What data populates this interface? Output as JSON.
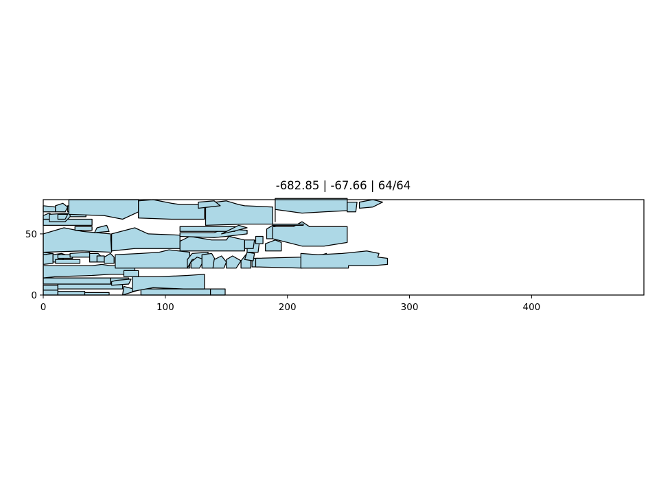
{
  "chart_data": {
    "type": "polygon-packing",
    "title": "-682.85 | -67.66 | 64/64",
    "xlabel": "",
    "ylabel": "",
    "xlim": [
      0,
      492
    ],
    "ylim": [
      0,
      78
    ],
    "xticks": [
      "0",
      "100",
      "200",
      "300",
      "400"
    ],
    "yticks": [
      "0",
      "50"
    ],
    "grid": false,
    "fill_color": "#add8e6",
    "edge_color": "#000000",
    "pieces": [
      [
        [
          0,
          0
        ],
        [
          12,
          0
        ],
        [
          12,
          4
        ],
        [
          0,
          4
        ]
      ],
      [
        [
          12,
          0
        ],
        [
          34,
          0
        ],
        [
          34,
          3
        ],
        [
          12,
          3
        ]
      ],
      [
        [
          34,
          0
        ],
        [
          54,
          0
        ],
        [
          54,
          2
        ],
        [
          34,
          2
        ]
      ],
      [
        [
          65,
          0
        ],
        [
          78,
          4
        ],
        [
          66,
          7
        ]
      ],
      [
        [
          80,
          0
        ],
        [
          137,
          0
        ],
        [
          137,
          5
        ],
        [
          80,
          5
        ]
      ],
      [
        [
          137,
          0
        ],
        [
          149,
          0
        ],
        [
          149,
          5
        ],
        [
          137,
          5
        ]
      ],
      [
        [
          0,
          4
        ],
        [
          12,
          4
        ],
        [
          12,
          8
        ],
        [
          0,
          8
        ]
      ],
      [
        [
          12,
          5
        ],
        [
          65,
          5
        ],
        [
          65,
          9
        ],
        [
          12,
          9
        ]
      ],
      [
        [
          0,
          9
        ],
        [
          55,
          9
        ],
        [
          55,
          14
        ],
        [
          0,
          14
        ]
      ],
      [
        [
          55,
          9
        ],
        [
          70,
          9
        ],
        [
          70,
          14
        ],
        [
          55,
          14
        ]
      ],
      [
        [
          0,
          14
        ],
        [
          0,
          24
        ],
        [
          40,
          24
        ],
        [
          48,
          25
        ],
        [
          55,
          24
        ],
        [
          75,
          24
        ],
        [
          75,
          17
        ],
        [
          55,
          17
        ],
        [
          40,
          16
        ],
        [
          10,
          15
        ]
      ],
      [
        [
          56,
          8
        ],
        [
          70,
          9
        ],
        [
          72,
          13
        ],
        [
          60,
          12
        ],
        [
          56,
          11
        ]
      ],
      [
        [
          73,
          3
        ],
        [
          73,
          15
        ],
        [
          90,
          15
        ],
        [
          95,
          15
        ],
        [
          118,
          16
        ],
        [
          132,
          17
        ],
        [
          132,
          5
        ],
        [
          115,
          5
        ],
        [
          90,
          6
        ]
      ],
      [
        [
          66,
          15
        ],
        [
          66,
          20
        ],
        [
          78,
          20
        ],
        [
          78,
          15
        ]
      ],
      [
        [
          0,
          25
        ],
        [
          0,
          33
        ],
        [
          8,
          34
        ],
        [
          8,
          26
        ]
      ],
      [
        [
          8,
          27
        ],
        [
          8,
          33
        ],
        [
          15,
          34
        ],
        [
          18,
          33
        ],
        [
          15,
          27
        ]
      ],
      [
        [
          10,
          26
        ],
        [
          10,
          29
        ],
        [
          30,
          29
        ],
        [
          30,
          26
        ]
      ],
      [
        [
          12,
          30
        ],
        [
          12,
          33
        ],
        [
          24,
          33
        ],
        [
          24,
          30
        ]
      ],
      [
        [
          22,
          34
        ],
        [
          38,
          35
        ],
        [
          38,
          31
        ],
        [
          22,
          31
        ]
      ],
      [
        [
          0,
          35
        ],
        [
          8,
          34
        ],
        [
          0,
          33
        ]
      ],
      [
        [
          38,
          27
        ],
        [
          38,
          34
        ],
        [
          45,
          34
        ],
        [
          48,
          31
        ],
        [
          45,
          27
        ]
      ],
      [
        [
          44,
          27
        ],
        [
          50,
          27
        ],
        [
          50,
          32
        ],
        [
          44,
          32
        ]
      ],
      [
        [
          50,
          26
        ],
        [
          58,
          26
        ],
        [
          58,
          31
        ],
        [
          55,
          34
        ],
        [
          50,
          31
        ]
      ],
      [
        [
          59,
          22
        ],
        [
          59,
          33
        ],
        [
          80,
          34
        ],
        [
          95,
          35
        ],
        [
          103,
          37
        ],
        [
          120,
          35
        ],
        [
          120,
          22
        ]
      ],
      [
        [
          118,
          22
        ],
        [
          118,
          29
        ],
        [
          122,
          34
        ],
        [
          135,
          35
        ],
        [
          135,
          30
        ],
        [
          122,
          29
        ]
      ],
      [
        [
          121,
          22
        ],
        [
          128,
          22
        ],
        [
          132,
          29
        ],
        [
          126,
          31
        ],
        [
          121,
          27
        ]
      ],
      [
        [
          130,
          22
        ],
        [
          139,
          22
        ],
        [
          142,
          27
        ],
        [
          138,
          34
        ],
        [
          130,
          33
        ]
      ],
      [
        [
          139,
          22
        ],
        [
          148,
          22
        ],
        [
          150,
          27
        ],
        [
          146,
          32
        ],
        [
          140,
          29
        ]
      ],
      [
        [
          150,
          22
        ],
        [
          158,
          22
        ],
        [
          162,
          28
        ],
        [
          155,
          32
        ],
        [
          150,
          29
        ]
      ],
      [
        [
          162,
          22
        ],
        [
          170,
          22
        ],
        [
          170,
          30
        ],
        [
          166,
          33
        ],
        [
          162,
          28
        ]
      ],
      [
        [
          171,
          23
        ],
        [
          176,
          23
        ],
        [
          176,
          30
        ],
        [
          171,
          30
        ]
      ],
      [
        [
          165,
          29
        ],
        [
          172,
          28
        ],
        [
          173,
          34
        ],
        [
          167,
          35
        ]
      ],
      [
        [
          174,
          23
        ],
        [
          174,
          30
        ],
        [
          212,
          31
        ],
        [
          225,
          32
        ],
        [
          232,
          34
        ],
        [
          232,
          28
        ],
        [
          212,
          28
        ],
        [
          212,
          22
        ]
      ],
      [
        [
          211,
          22
        ],
        [
          250,
          22
        ],
        [
          250,
          24
        ],
        [
          270,
          24
        ],
        [
          282,
          25
        ],
        [
          282,
          30
        ],
        [
          274,
          31
        ],
        [
          275,
          34
        ],
        [
          265,
          36
        ],
        [
          245,
          34
        ],
        [
          225,
          33
        ],
        [
          211,
          34
        ]
      ],
      [
        [
          0,
          35
        ],
        [
          0,
          50
        ],
        [
          17,
          55
        ],
        [
          32,
          52
        ],
        [
          55,
          50
        ],
        [
          56,
          35
        ],
        [
          32,
          36
        ]
      ],
      [
        [
          56,
          36
        ],
        [
          56,
          50
        ],
        [
          75,
          55
        ],
        [
          86,
          50
        ],
        [
          112,
          49
        ],
        [
          112,
          38
        ],
        [
          75,
          38
        ]
      ],
      [
        [
          112,
          36
        ],
        [
          112,
          44
        ],
        [
          120,
          48
        ],
        [
          138,
          45
        ],
        [
          150,
          45
        ],
        [
          152,
          48
        ],
        [
          165,
          45
        ],
        [
          165,
          36
        ]
      ],
      [
        [
          167,
          35
        ],
        [
          167,
          40
        ],
        [
          172,
          45
        ],
        [
          177,
          43
        ],
        [
          176,
          35
        ]
      ],
      [
        [
          174,
          42
        ],
        [
          174,
          48
        ],
        [
          180,
          48
        ],
        [
          180,
          42
        ]
      ],
      [
        [
          182,
          36
        ],
        [
          182,
          42
        ],
        [
          190,
          45
        ],
        [
          195,
          43
        ],
        [
          195,
          36
        ]
      ],
      [
        [
          183,
          46
        ],
        [
          183,
          54
        ],
        [
          188,
          57
        ],
        [
          193,
          55
        ],
        [
          190,
          46
        ]
      ],
      [
        [
          165,
          38
        ],
        [
          165,
          45
        ],
        [
          173,
          45
        ],
        [
          172,
          38
        ]
      ],
      [
        [
          112,
          48
        ],
        [
          112,
          51
        ],
        [
          140,
          51
        ],
        [
          148,
          54
        ],
        [
          167,
          53
        ],
        [
          167,
          50
        ],
        [
          150,
          48
        ],
        [
          140,
          47
        ]
      ],
      [
        [
          112,
          52
        ],
        [
          112,
          56
        ],
        [
          157,
          56
        ],
        [
          157,
          52
        ]
      ],
      [
        [
          146,
          50
        ],
        [
          155,
          52
        ],
        [
          167,
          55
        ],
        [
          160,
          57
        ]
      ],
      [
        [
          188,
          46
        ],
        [
          188,
          56
        ],
        [
          205,
          56
        ],
        [
          212,
          60
        ],
        [
          218,
          56
        ],
        [
          249,
          56
        ],
        [
          249,
          43
        ],
        [
          230,
          40
        ],
        [
          212,
          40
        ],
        [
          188,
          46
        ]
      ],
      [
        [
          188,
          57
        ],
        [
          188,
          58
        ],
        [
          213,
          58
        ],
        [
          213,
          57
        ]
      ],
      [
        [
          0,
          57
        ],
        [
          0,
          62
        ],
        [
          40,
          62
        ],
        [
          40,
          57
        ]
      ],
      [
        [
          26,
          53
        ],
        [
          26,
          56
        ],
        [
          40,
          56
        ],
        [
          40,
          53
        ]
      ],
      [
        [
          42,
          51
        ],
        [
          54,
          52
        ],
        [
          52,
          57
        ],
        [
          44,
          55
        ]
      ],
      [
        [
          0,
          62
        ],
        [
          0,
          65
        ],
        [
          5,
          67
        ],
        [
          12,
          62
        ]
      ],
      [
        [
          5,
          60
        ],
        [
          5,
          66
        ],
        [
          22,
          67
        ],
        [
          22,
          64
        ],
        [
          18,
          60
        ]
      ],
      [
        [
          12,
          62
        ],
        [
          12,
          66
        ],
        [
          20,
          66
        ],
        [
          18,
          62
        ]
      ],
      [
        [
          0,
          68
        ],
        [
          0,
          73
        ],
        [
          10,
          72
        ],
        [
          10,
          68
        ]
      ],
      [
        [
          10,
          68
        ],
        [
          10,
          73
        ],
        [
          16,
          75
        ],
        [
          20,
          72
        ],
        [
          18,
          68
        ]
      ],
      [
        [
          20,
          68
        ],
        [
          20,
          73
        ],
        [
          26,
          72
        ],
        [
          26,
          68
        ]
      ],
      [
        [
          22,
          64
        ],
        [
          22,
          68
        ],
        [
          35,
          68
        ],
        [
          35,
          64
        ]
      ],
      [
        [
          21,
          66
        ],
        [
          21,
          78
        ],
        [
          78,
          78
        ],
        [
          78,
          68
        ],
        [
          65,
          62
        ],
        [
          50,
          65
        ],
        [
          21,
          66
        ]
      ],
      [
        [
          78,
          63
        ],
        [
          78,
          77
        ],
        [
          90,
          78
        ],
        [
          105,
          75
        ],
        [
          112,
          74
        ],
        [
          132,
          74
        ],
        [
          132,
          62
        ],
        [
          105,
          62
        ]
      ],
      [
        [
          133,
          57
        ],
        [
          133,
          75
        ],
        [
          150,
          77
        ],
        [
          160,
          74
        ],
        [
          165,
          73
        ],
        [
          188,
          72
        ],
        [
          188,
          58
        ],
        [
          165,
          58
        ]
      ],
      [
        [
          190,
          60
        ],
        [
          190,
          70
        ],
        [
          212,
          67
        ],
        [
          230,
          68
        ],
        [
          249,
          69
        ],
        [
          249,
          79
        ],
        [
          190,
          79
        ]
      ],
      [
        [
          249,
          68
        ],
        [
          249,
          76
        ],
        [
          257,
          76
        ],
        [
          256,
          68
        ]
      ],
      [
        [
          259,
          71
        ],
        [
          259,
          76
        ],
        [
          270,
          78
        ],
        [
          278,
          76
        ],
        [
          270,
          72
        ]
      ],
      [
        [
          127,
          71
        ],
        [
          127,
          76
        ],
        [
          140,
          77
        ],
        [
          145,
          73
        ]
      ]
    ]
  }
}
